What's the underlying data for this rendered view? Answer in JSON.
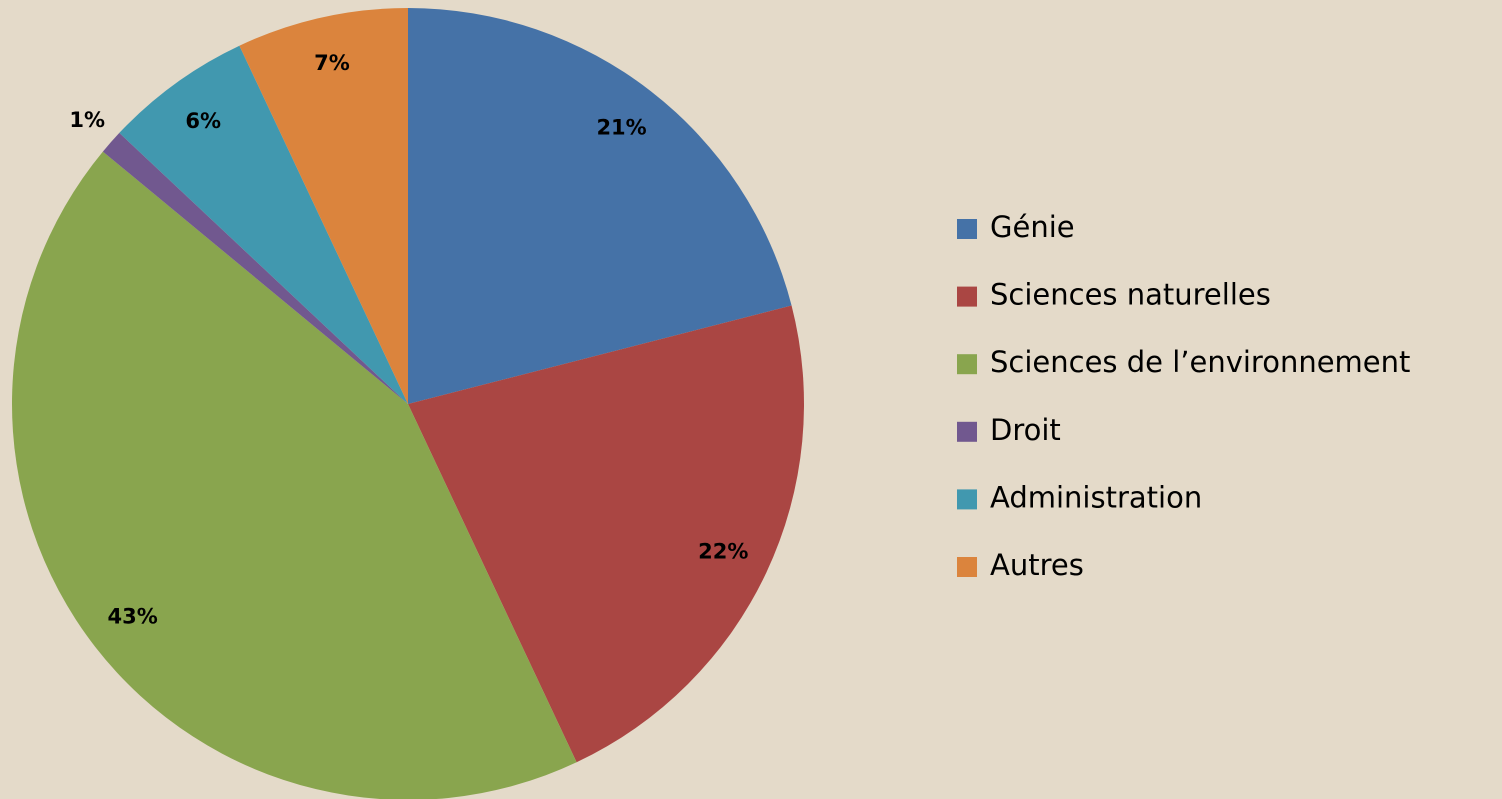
{
  "chart_data": {
    "type": "pie",
    "categories": [
      "Génie",
      "Sciences naturelles",
      "Sciences de l’environnement",
      "Droit",
      "Administration",
      "Autres"
    ],
    "values": [
      21,
      22,
      43,
      1,
      6,
      7
    ],
    "value_labels": [
      "21%",
      "22%",
      "43%",
      "1%",
      "6%",
      "7%"
    ],
    "colors": [
      "#4572a7",
      "#aa4643",
      "#89a54e",
      "#71588f",
      "#4198af",
      "#db843d"
    ],
    "legend": "right"
  }
}
